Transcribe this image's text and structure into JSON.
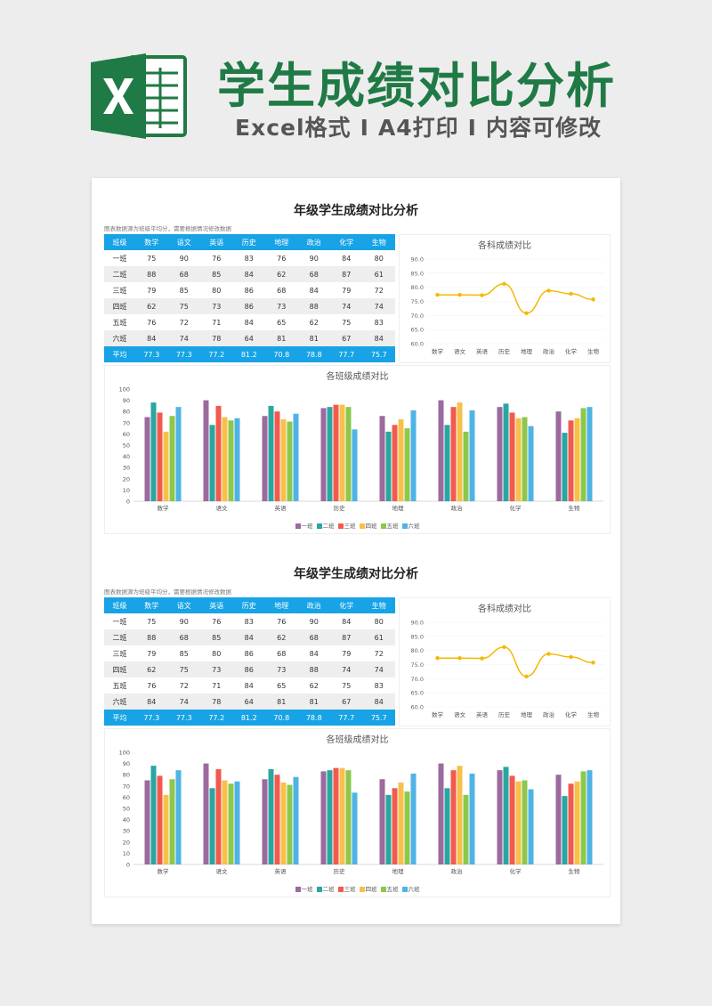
{
  "header": {
    "title": "学生成绩对比分析",
    "subtitle_parts": [
      "Excel格式",
      "I",
      "A4打印",
      "I",
      "内容可修改"
    ]
  },
  "report": {
    "title": "年级学生成绩对比分析",
    "note": "图表数据源为班级平均分，需要根据情况修改数据",
    "columns": [
      "班级",
      "数学",
      "语文",
      "英语",
      "历史",
      "地理",
      "政治",
      "化学",
      "生物"
    ],
    "rows": [
      [
        "一班",
        "75",
        "90",
        "76",
        "83",
        "76",
        "90",
        "84",
        "80"
      ],
      [
        "二班",
        "88",
        "68",
        "85",
        "84",
        "62",
        "68",
        "87",
        "61"
      ],
      [
        "三班",
        "79",
        "85",
        "80",
        "86",
        "68",
        "84",
        "79",
        "72"
      ],
      [
        "四班",
        "62",
        "75",
        "73",
        "86",
        "73",
        "88",
        "74",
        "74"
      ],
      [
        "五班",
        "76",
        "72",
        "71",
        "84",
        "65",
        "62",
        "75",
        "83"
      ],
      [
        "六班",
        "84",
        "74",
        "78",
        "64",
        "81",
        "81",
        "67",
        "84"
      ]
    ],
    "footer": [
      "平均",
      "77.3",
      "77.3",
      "77.2",
      "81.2",
      "70.8",
      "78.8",
      "77.7",
      "75.7"
    ],
    "line_chart_title": "各科成绩对比",
    "bar_chart_title": "各班级成绩对比"
  },
  "chart_data": [
    {
      "type": "line",
      "title": "各科成绩对比",
      "categories": [
        "数学",
        "语文",
        "英语",
        "历史",
        "地理",
        "政治",
        "化学",
        "生物"
      ],
      "values": [
        77.3,
        77.3,
        77.2,
        81.2,
        70.8,
        78.8,
        77.7,
        75.7
      ],
      "ylim": [
        60,
        90
      ],
      "yticks": [
        "60.0",
        "65.0",
        "70.0",
        "75.0",
        "80.0",
        "85.0",
        "90.0"
      ],
      "color": "#f5b800"
    },
    {
      "type": "bar",
      "title": "各班级成绩对比",
      "categories": [
        "数学",
        "语文",
        "英语",
        "历史",
        "地理",
        "政治",
        "化学",
        "生物"
      ],
      "ylim": [
        0,
        100
      ],
      "yticks": [
        "0",
        "10",
        "20",
        "30",
        "40",
        "50",
        "60",
        "70",
        "80",
        "90",
        "100"
      ],
      "series": [
        {
          "name": "一班",
          "color": "#9b6a9e",
          "values": [
            75,
            90,
            76,
            83,
            76,
            90,
            84,
            80
          ]
        },
        {
          "name": "二班",
          "color": "#2aa6a0",
          "values": [
            88,
            68,
            85,
            84,
            62,
            68,
            87,
            61
          ]
        },
        {
          "name": "三班",
          "color": "#f25a4f",
          "values": [
            79,
            85,
            80,
            86,
            68,
            84,
            79,
            72
          ]
        },
        {
          "name": "四班",
          "color": "#f8c04a",
          "values": [
            62,
            75,
            73,
            86,
            73,
            88,
            74,
            74
          ]
        },
        {
          "name": "五班",
          "color": "#8cc84b",
          "values": [
            76,
            72,
            71,
            84,
            65,
            62,
            75,
            83
          ]
        },
        {
          "name": "六班",
          "color": "#4fb3e6",
          "values": [
            84,
            74,
            78,
            64,
            81,
            81,
            67,
            84
          ]
        }
      ]
    }
  ],
  "colors": {
    "brand_green": "#1f7a45",
    "table_blue": "#17a3e6"
  }
}
